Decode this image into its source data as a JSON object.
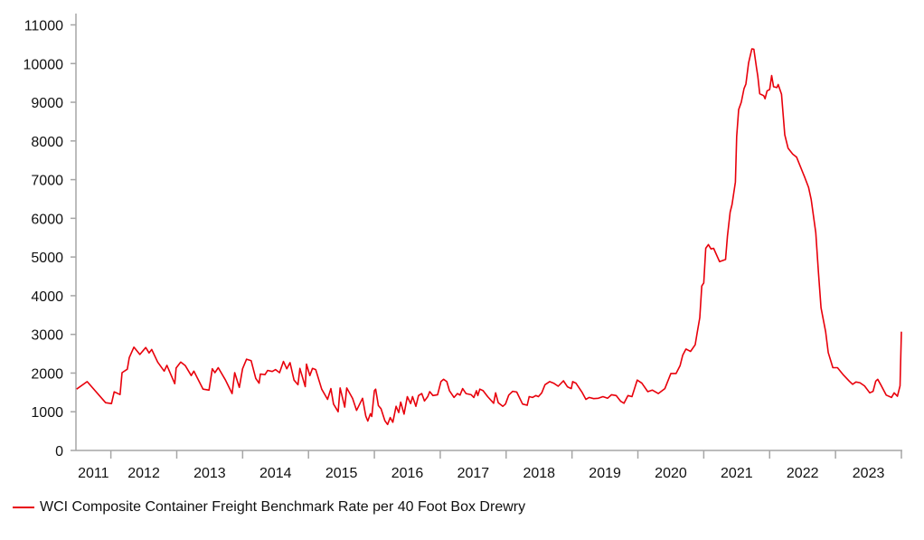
{
  "chart_data": {
    "type": "line",
    "title": "",
    "xlabel": "",
    "ylabel": "",
    "xlim": [
      2011.47,
      2024.0
    ],
    "ylim": [
      0,
      11000
    ],
    "yticks": [
      0,
      1000,
      2000,
      3000,
      4000,
      5000,
      6000,
      7000,
      8000,
      9000,
      10000,
      11000
    ],
    "ytick_labels": [
      "0",
      "1000",
      "2000",
      "3000",
      "4000",
      "5000",
      "6000",
      "7000",
      "8000",
      "9000",
      "10000",
      "11000"
    ],
    "xtick_labels": [
      "2011",
      "2012",
      "2013",
      "2014",
      "2015",
      "2016",
      "2017",
      "2018",
      "2019",
      "2020",
      "2021",
      "2022",
      "2023"
    ],
    "grid": false,
    "legend_position": "bottom-left",
    "line_color": "#e8000b",
    "axis_color": "#a6a6a6",
    "series": [
      {
        "name": "WCI Composite Container Freight Benchmark Rate per 40 Foot Box Drewry",
        "x": [
          2011.48,
          2011.64,
          2011.92,
          2012.01,
          2012.05,
          2012.14,
          2012.17,
          2012.25,
          2012.28,
          2012.35,
          2012.44,
          2012.53,
          2012.58,
          2012.62,
          2012.71,
          2012.81,
          2012.85,
          2012.97,
          2012.99,
          2013.06,
          2013.13,
          2013.22,
          2013.26,
          2013.4,
          2013.49,
          2013.54,
          2013.58,
          2013.63,
          2013.74,
          2013.84,
          2013.88,
          2013.95,
          2014.0,
          2014.06,
          2014.13,
          2014.2,
          2014.25,
          2014.27,
          2014.34,
          2014.38,
          2014.45,
          2014.5,
          2014.56,
          2014.62,
          2014.67,
          2014.72,
          2014.78,
          2014.84,
          2014.87,
          2014.95,
          2014.97,
          2015.02,
          2015.06,
          2015.11,
          2015.2,
          2015.29,
          2015.34,
          2015.38,
          2015.45,
          2015.48,
          2015.55,
          2015.58,
          2015.67,
          2015.73,
          2015.82,
          2015.87,
          2015.9,
          2015.94,
          2015.96,
          2016.0,
          2016.02,
          2016.06,
          2016.1,
          2016.16,
          2016.2,
          2016.24,
          2016.28,
          2016.33,
          2016.37,
          2016.4,
          2016.45,
          2016.5,
          2016.55,
          2016.58,
          2016.63,
          2016.67,
          2016.72,
          2016.76,
          2016.81,
          2016.84,
          2016.89,
          2016.96,
          2017.01,
          2017.05,
          2017.1,
          2017.14,
          2017.21,
          2017.26,
          2017.3,
          2017.34,
          2017.39,
          2017.47,
          2017.51,
          2017.55,
          2017.57,
          2017.6,
          2017.65,
          2017.72,
          2017.81,
          2017.84,
          2017.88,
          2017.95,
          2017.99,
          2018.04,
          2018.1,
          2018.16,
          2018.25,
          2018.32,
          2018.35,
          2018.4,
          2018.45,
          2018.49,
          2018.54,
          2018.59,
          2018.66,
          2018.72,
          2018.79,
          2018.87,
          2018.93,
          2018.99,
          2019.01,
          2019.06,
          2019.15,
          2019.21,
          2019.26,
          2019.33,
          2019.4,
          2019.47,
          2019.54,
          2019.6,
          2019.67,
          2019.74,
          2019.79,
          2019.85,
          2019.91,
          2019.99,
          2020.06,
          2020.15,
          2020.22,
          2020.31,
          2020.41,
          2020.5,
          2020.58,
          2020.64,
          2020.68,
          2020.73,
          2020.8,
          2020.87,
          2020.9,
          2020.94,
          2020.97,
          2021.0,
          2021.03,
          2021.07,
          2021.11,
          2021.15,
          2021.24,
          2021.33,
          2021.36,
          2021.4,
          2021.43,
          2021.48,
          2021.5,
          2021.53,
          2021.57,
          2021.61,
          2021.64,
          2021.68,
          2021.73,
          2021.76,
          2021.8,
          2021.82,
          2021.85,
          2021.91,
          2021.93,
          2021.96,
          2022.0,
          2022.03,
          2022.06,
          2022.11,
          2022.13,
          2022.18,
          2022.23,
          2022.28,
          2022.35,
          2022.41,
          2022.53,
          2022.59,
          2022.63,
          2022.7,
          2022.74,
          2022.78,
          2022.81,
          2022.85,
          2022.89,
          2022.96,
          2023.03,
          2023.12,
          2023.21,
          2023.26,
          2023.31,
          2023.37,
          2023.44,
          2023.52,
          2023.57,
          2023.61,
          2023.64,
          2023.69,
          2023.77,
          2023.85,
          2023.89,
          2023.94,
          2023.98,
          2024.0
        ],
        "values": [
          1585,
          1780,
          1235,
          1210,
          1515,
          1445,
          2010,
          2100,
          2400,
          2670,
          2480,
          2660,
          2520,
          2610,
          2285,
          2050,
          2200,
          1725,
          2130,
          2285,
          2190,
          1935,
          2050,
          1585,
          1560,
          2110,
          2010,
          2140,
          1820,
          1470,
          2010,
          1630,
          2110,
          2360,
          2320,
          1860,
          1740,
          1975,
          1960,
          2070,
          2040,
          2090,
          2010,
          2300,
          2110,
          2270,
          1820,
          1700,
          2120,
          1650,
          2230,
          1935,
          2120,
          2090,
          1585,
          1320,
          1600,
          1200,
          1000,
          1615,
          1120,
          1615,
          1345,
          1035,
          1350,
          885,
          760,
          950,
          880,
          1545,
          1585,
          1160,
          1080,
          770,
          670,
          850,
          730,
          1140,
          980,
          1250,
          940,
          1390,
          1210,
          1390,
          1140,
          1420,
          1470,
          1280,
          1390,
          1520,
          1420,
          1440,
          1780,
          1840,
          1780,
          1545,
          1370,
          1470,
          1430,
          1600,
          1470,
          1440,
          1370,
          1545,
          1420,
          1585,
          1545,
          1390,
          1220,
          1490,
          1235,
          1140,
          1200,
          1430,
          1530,
          1510,
          1200,
          1170,
          1390,
          1370,
          1420,
          1390,
          1490,
          1700,
          1780,
          1740,
          1660,
          1800,
          1645,
          1600,
          1780,
          1740,
          1510,
          1320,
          1370,
          1340,
          1350,
          1390,
          1350,
          1440,
          1420,
          1270,
          1220,
          1420,
          1390,
          1820,
          1740,
          1520,
          1560,
          1470,
          1600,
          1990,
          1990,
          2190,
          2460,
          2620,
          2560,
          2730,
          3040,
          3430,
          4250,
          4330,
          5225,
          5320,
          5210,
          5225,
          4880,
          4935,
          5540,
          6160,
          6360,
          6940,
          8110,
          8810,
          9000,
          9350,
          9470,
          10020,
          10380,
          10370,
          9900,
          9670,
          9220,
          9170,
          9090,
          9290,
          9330,
          9690,
          9400,
          9380,
          9460,
          9210,
          8160,
          7810,
          7660,
          7580,
          7070,
          6800,
          6490,
          5630,
          4620,
          3690,
          3420,
          3070,
          2530,
          2140,
          2140,
          1950,
          1790,
          1710,
          1770,
          1750,
          1670,
          1490,
          1530,
          1790,
          1840,
          1690,
          1430,
          1370,
          1490,
          1400,
          1670,
          3070
        ]
      }
    ]
  }
}
